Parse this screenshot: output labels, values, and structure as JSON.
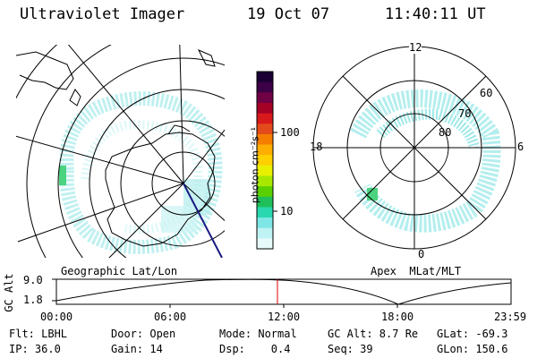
{
  "header": {
    "title": "Ultraviolet Imager",
    "date": "19 Oct 07",
    "time": "11:40:11 UT"
  },
  "colorbar": {
    "unit_label": "photon cm⁻²s⁻¹",
    "ticks": [
      "100",
      "10"
    ],
    "colors": [
      "#1a0033",
      "#3b0046",
      "#700044",
      "#a50026",
      "#d7191c",
      "#e34a1c",
      "#f57e00",
      "#fdae00",
      "#fdd000",
      "#e8f000",
      "#a8e800",
      "#5ad000",
      "#1fbf5a",
      "#2ad8b0",
      "#7fe6e6",
      "#bff2f2",
      "#e6fafa"
    ]
  },
  "geo_panel": {
    "label": "Geographic Lat/Lon"
  },
  "apex_panel": {
    "label": "Apex  MLat/MLT",
    "mlt_top": "12",
    "mlt_left": "18",
    "mlt_right": "6",
    "mlt_bottom": "0",
    "lat_60": "60",
    "lat_70": "70",
    "lat_80": "80"
  },
  "alt_plot": {
    "ylabel": "GC Alt",
    "y_max": "9.0",
    "y_min": "1.8",
    "x_ticks": [
      "00:00",
      "06:00",
      "12:00",
      "18:00",
      "23:59"
    ],
    "current_marker_hour": 11.67
  },
  "status": {
    "filter": "Flt: LBHL",
    "ip": "IP: 36.0",
    "door": "Door: Open",
    "gain": "Gain: 14",
    "mode": "Mode: Normal",
    "dsp": "Dsp:    0.4",
    "gc_alt": "GC Alt: 8.7 Re",
    "seq": "Seq: 39",
    "glat": "GLat: -69.3",
    "glon": "GLon: 150.6"
  },
  "colors": {
    "background": "#ffffff",
    "foreground": "#000000",
    "marker": "#e00000",
    "orbit": "#1a1a80",
    "aurora": "#9de8e8"
  }
}
